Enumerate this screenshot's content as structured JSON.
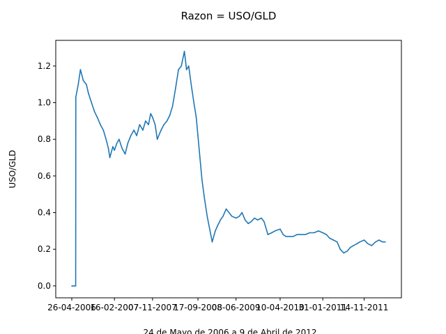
{
  "chart_data": {
    "type": "line",
    "title": "Razon = USO/GLD",
    "xlabel": "24 de Mayo de 2006 a 9 de Abril de 2012",
    "ylabel": "USO/GLD",
    "x_tick_labels": [
      "26-04-2006",
      "16-02-2007",
      "07-11-2007",
      "17-09-2008",
      "08-06-2009",
      "10-04-2010",
      "31-01-2011",
      "14-11-2011"
    ],
    "y_tick_labels": [
      "0.0",
      "0.2",
      "0.4",
      "0.6",
      "0.8",
      "1.0",
      "1.2"
    ],
    "ylim": [
      -0.065,
      1.34
    ],
    "grid": false,
    "series": [
      {
        "color": "#1f77b4",
        "x": [
          "2006-04-26",
          "2006-05-23",
          "2006-05-24",
          "2006-06-10",
          "2006-06-25",
          "2006-07-15",
          "2006-08-05",
          "2006-08-20",
          "2006-09-10",
          "2006-10-01",
          "2006-10-20",
          "2006-11-10",
          "2006-12-01",
          "2006-12-20",
          "2007-01-05",
          "2007-01-15",
          "2007-02-05",
          "2007-02-16",
          "2007-03-05",
          "2007-03-20",
          "2007-04-10",
          "2007-05-01",
          "2007-05-20",
          "2007-06-10",
          "2007-07-01",
          "2007-07-20",
          "2007-08-10",
          "2007-09-01",
          "2007-09-20",
          "2007-10-10",
          "2007-10-25",
          "2007-11-07",
          "2007-11-25",
          "2007-12-10",
          "2008-01-05",
          "2008-01-25",
          "2008-02-15",
          "2008-03-05",
          "2008-03-25",
          "2008-04-15",
          "2008-05-05",
          "2008-05-25",
          "2008-06-15",
          "2008-06-30",
          "2008-07-15",
          "2008-08-01",
          "2008-08-20",
          "2008-09-05",
          "2008-09-17",
          "2008-10-01",
          "2008-10-15",
          "2008-11-01",
          "2008-11-20",
          "2008-12-10",
          "2008-12-25",
          "2009-01-15",
          "2009-02-01",
          "2009-02-20",
          "2009-03-10",
          "2009-04-01",
          "2009-04-20",
          "2009-05-10",
          "2009-06-08",
          "2009-07-01",
          "2009-07-20",
          "2009-08-10",
          "2009-09-01",
          "2009-09-20",
          "2009-10-15",
          "2009-11-05",
          "2009-12-01",
          "2009-12-20",
          "2010-01-15",
          "2010-02-10",
          "2010-03-05",
          "2010-04-10",
          "2010-05-01",
          "2010-05-20",
          "2010-06-15",
          "2010-07-10",
          "2010-08-05",
          "2010-09-01",
          "2010-10-01",
          "2010-11-01",
          "2010-12-01",
          "2011-01-01",
          "2011-01-31",
          "2011-02-25",
          "2011-03-20",
          "2011-04-15",
          "2011-05-10",
          "2011-06-01",
          "2011-06-25",
          "2011-07-20",
          "2011-08-10",
          "2011-09-01",
          "2011-09-25",
          "2011-10-15",
          "2011-11-14",
          "2011-12-10",
          "2012-01-05",
          "2012-02-01",
          "2012-02-25",
          "2012-03-20",
          "2012-04-09"
        ],
        "y": [
          0.0,
          0.0,
          1.03,
          1.1,
          1.18,
          1.12,
          1.1,
          1.05,
          1.0,
          0.95,
          0.92,
          0.88,
          0.85,
          0.8,
          0.75,
          0.7,
          0.76,
          0.74,
          0.78,
          0.8,
          0.75,
          0.72,
          0.78,
          0.82,
          0.85,
          0.82,
          0.88,
          0.85,
          0.9,
          0.88,
          0.94,
          0.92,
          0.88,
          0.8,
          0.85,
          0.88,
          0.9,
          0.93,
          0.98,
          1.08,
          1.18,
          1.2,
          1.28,
          1.18,
          1.2,
          1.1,
          1.0,
          0.92,
          0.82,
          0.7,
          0.58,
          0.48,
          0.38,
          0.3,
          0.24,
          0.3,
          0.33,
          0.36,
          0.38,
          0.42,
          0.4,
          0.38,
          0.37,
          0.38,
          0.4,
          0.36,
          0.34,
          0.35,
          0.37,
          0.36,
          0.37,
          0.35,
          0.28,
          0.29,
          0.3,
          0.31,
          0.28,
          0.27,
          0.27,
          0.27,
          0.28,
          0.28,
          0.28,
          0.29,
          0.29,
          0.3,
          0.29,
          0.28,
          0.26,
          0.25,
          0.24,
          0.2,
          0.18,
          0.19,
          0.21,
          0.22,
          0.23,
          0.24,
          0.25,
          0.23,
          0.22,
          0.24,
          0.25,
          0.24,
          0.24
        ]
      }
    ]
  }
}
